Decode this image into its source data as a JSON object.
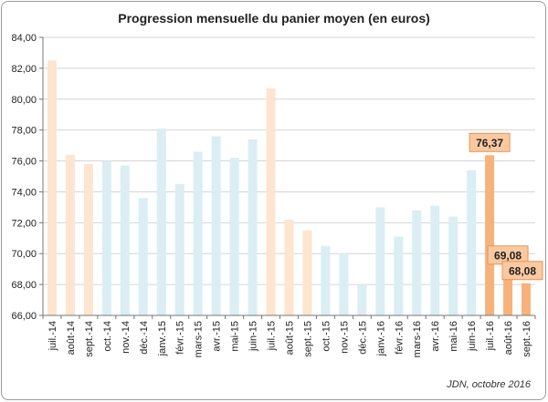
{
  "chart_data": {
    "type": "bar",
    "title": "Progression mensuelle du panier moyen (en euros)",
    "xlabel": "",
    "ylabel": "",
    "ylim": [
      66,
      84
    ],
    "yticks": [
      "66,00",
      "68,00",
      "70,00",
      "72,00",
      "74,00",
      "76,00",
      "78,00",
      "80,00",
      "82,00",
      "84,00"
    ],
    "grid": true,
    "categories": [
      "juil.-14",
      "août-14",
      "sept.-14",
      "oct.-14",
      "nov.-14",
      "déc.-14",
      "janv.-15",
      "févr.-15",
      "mars-15",
      "avr.-15",
      "mai-15",
      "juin-15",
      "juil.-15",
      "août-15",
      "sept.-15",
      "oct.-15",
      "nov.-15",
      "déc.-15",
      "janv.-16",
      "févr.-16",
      "mars-16",
      "avr.-16",
      "mai-16",
      "juin-16",
      "juil.-16",
      "août-16",
      "sept.-16"
    ],
    "values": [
      82.5,
      76.4,
      75.8,
      76.0,
      75.7,
      73.6,
      78.1,
      74.5,
      76.6,
      77.6,
      76.2,
      77.4,
      80.7,
      72.2,
      71.5,
      70.5,
      70.0,
      68.0,
      73.0,
      71.1,
      72.8,
      73.1,
      72.4,
      75.4,
      76.37,
      69.08,
      68.08
    ],
    "bar_colors": [
      "#fde5cf",
      "#fde5cf",
      "#fde5cf",
      "#daeef3",
      "#daeef3",
      "#daeef3",
      "#daeef3",
      "#daeef3",
      "#daeef3",
      "#daeef3",
      "#daeef3",
      "#daeef3",
      "#fde5cf",
      "#fde5cf",
      "#fde5cf",
      "#daeef3",
      "#daeef3",
      "#daeef3",
      "#daeef3",
      "#daeef3",
      "#daeef3",
      "#daeef3",
      "#daeef3",
      "#daeef3",
      "#f7b27b",
      "#f7b27b",
      "#f7b27b"
    ],
    "data_labels": [
      {
        "index": 24,
        "text": "76,37"
      },
      {
        "index": 25,
        "text": "69,08"
      },
      {
        "index": 26,
        "text": "68,08"
      }
    ],
    "label_box_color": "#fbc9a1",
    "source": "JDN, octobre 2016"
  }
}
